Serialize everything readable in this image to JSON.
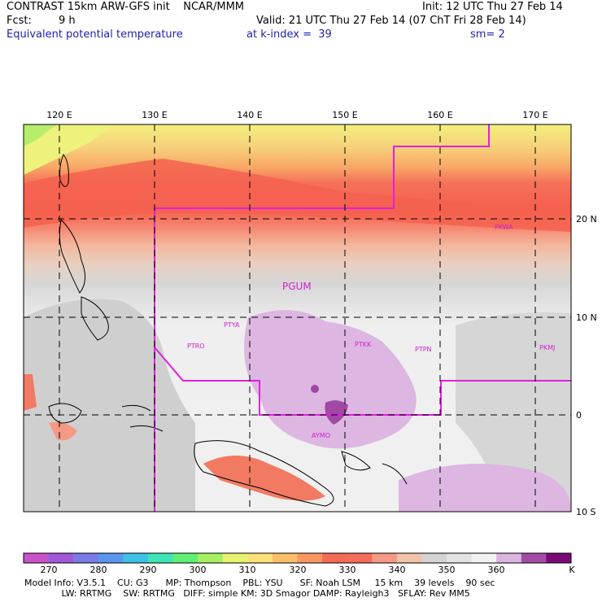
{
  "header": {
    "title": "CONTRAST 15km ARW-GFS init    NCAR/MMM",
    "init": "Init: 12 UTC Thu 27 Feb 14",
    "fcst_label": "Fcst:",
    "fcst_value": "9 h",
    "valid": "Valid: 21 UTC Thu 27 Feb 14 (07 ChT Fri 28 Feb 14)",
    "field": "Equivalent potential temperature",
    "level": "at k-index =  39",
    "smoothing": "sm= 2"
  },
  "map": {
    "lon_labels": [
      "120 E",
      "130 E",
      "140 E",
      "150 E",
      "160 E",
      "170 E"
    ],
    "lat_labels": [
      "20 N",
      "10 N",
      "0",
      "10 S"
    ],
    "stations": [
      "PGUM",
      "PTYA",
      "PTRO",
      "PTKK",
      "PTPN",
      "PKMJ",
      "PKWA",
      "AYMO"
    ],
    "boundary_color": "#e020e0"
  },
  "colorbar": {
    "ticks": [
      "270",
      "280",
      "290",
      "300",
      "310",
      "320",
      "330",
      "340",
      "350",
      "360"
    ],
    "unit": "K",
    "colors": [
      "#c853c8",
      "#a05ad8",
      "#7a7ae6",
      "#5a96ee",
      "#3fc0e6",
      "#3de6b4",
      "#62ee74",
      "#a4f060",
      "#e6f26e",
      "#fbe07a",
      "#fbbe6a",
      "#f89860",
      "#f56a54",
      "#f66c5c",
      "#f49a84",
      "#f2c2aa",
      "#d4d4d4",
      "#e2e2e2",
      "#f2f2f2",
      "#dcb4e0",
      "#a34ca6",
      "#7a0a78"
    ]
  },
  "footer": {
    "line1": "Model Info: V3.5.1    CU: G3      MP: Thompson    PBL: YSU      SF: Noah LSM     15 km    39 levels    90 sec",
    "line2": "             LW: RRTMG    SW: RRTMG   DIFF: simple KM: 3D Smagor DAMP: Rayleigh3   SFLAY: Rev MM5"
  }
}
